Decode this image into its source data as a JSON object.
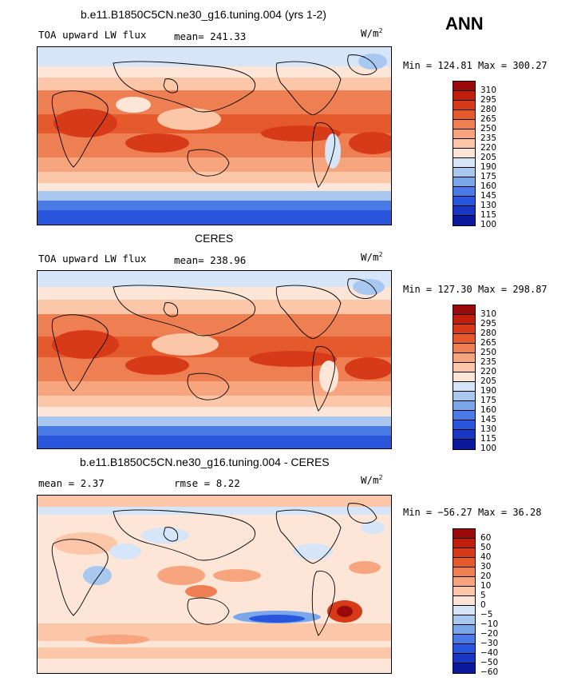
{
  "season": "ANN",
  "panels": [
    {
      "id": "model",
      "title": "b.e11.B1850C5CN.ne30_g16.tuning.004 (yrs 1-2)",
      "left_label": "TOA upward LW flux",
      "stat_label": "mean=",
      "stat_value": "241.33",
      "units_base": "W/m",
      "units_exp": "2",
      "min_label": "Min =",
      "min_value": "124.81",
      "max_label": "Max =",
      "max_value": "300.27",
      "levels": [
        "310",
        "295",
        "280",
        "265",
        "250",
        "235",
        "220",
        "205",
        "190",
        "175",
        "160",
        "145",
        "130",
        "115",
        "100"
      ],
      "colors": [
        "#9b0a0a",
        "#c01e0a",
        "#d73a18",
        "#e55a2c",
        "#ee7f52",
        "#f6a57e",
        "#fbc7a8",
        "#fde6d8",
        "#d6e6f8",
        "#a9c8f0",
        "#7aa6ea",
        "#4a7ae6",
        "#2a56dd",
        "#1736c2",
        "#0a1a9a"
      ]
    },
    {
      "id": "obs",
      "title": "CERES",
      "left_label": "TOA upward LW flux",
      "stat_label": "mean=",
      "stat_value": "238.96",
      "units_base": "W/m",
      "units_exp": "2",
      "min_label": "Min =",
      "min_value": "127.30",
      "max_label": "Max =",
      "max_value": "298.87",
      "levels": [
        "310",
        "295",
        "280",
        "265",
        "250",
        "235",
        "220",
        "205",
        "190",
        "175",
        "160",
        "145",
        "130",
        "115",
        "100"
      ],
      "colors": [
        "#9b0a0a",
        "#c01e0a",
        "#d73a18",
        "#e55a2c",
        "#ee7f52",
        "#f6a57e",
        "#fbc7a8",
        "#fde6d8",
        "#d6e6f8",
        "#a9c8f0",
        "#7aa6ea",
        "#4a7ae6",
        "#2a56dd",
        "#1736c2",
        "#0a1a9a"
      ]
    },
    {
      "id": "diff",
      "title": "b.e11.B1850C5CN.ne30_g16.tuning.004 - CERES",
      "left_label": "mean =",
      "left_value": "2.37",
      "stat_label": "rmse =",
      "stat_value": "8.22",
      "units_base": "W/m",
      "units_exp": "2",
      "min_label": "Min =",
      "min_value": "−56.27",
      "max_label": "Max =",
      "max_value": "36.28",
      "levels": [
        "60",
        "50",
        "40",
        "30",
        "20",
        "10",
        "5",
        "0",
        "−5",
        "−10",
        "−20",
        "−30",
        "−40",
        "−50",
        "−60"
      ],
      "colors": [
        "#9b0a0a",
        "#c01e0a",
        "#d73a18",
        "#e55a2c",
        "#ee7f52",
        "#f6a57e",
        "#fbc7a8",
        "#fde6d8",
        "#d6e6f8",
        "#a9c8f0",
        "#7aa6ea",
        "#4a7ae6",
        "#2a56dd",
        "#1736c2",
        "#0a1a9a"
      ]
    }
  ],
  "chart_data": [
    {
      "type": "heatmap",
      "title": "b.e11.B1850C5CN.ne30_g16.tuning.004 (yrs 1-2)",
      "variable": "TOA upward LW flux",
      "units": "W/m2",
      "mean": 241.33,
      "min": 124.81,
      "max": 300.27,
      "colorbar_levels": [
        310,
        295,
        280,
        265,
        250,
        235,
        220,
        205,
        190,
        175,
        160,
        145,
        130,
        115,
        100
      ]
    },
    {
      "type": "heatmap",
      "title": "CERES",
      "variable": "TOA upward LW flux",
      "units": "W/m2",
      "mean": 238.96,
      "min": 127.3,
      "max": 298.87,
      "colorbar_levels": [
        310,
        295,
        280,
        265,
        250,
        235,
        220,
        205,
        190,
        175,
        160,
        145,
        130,
        115,
        100
      ]
    },
    {
      "type": "heatmap",
      "title": "b.e11.B1850C5CN.ne30_g16.tuning.004 - CERES",
      "units": "W/m2",
      "mean": 2.37,
      "rmse": 8.22,
      "min": -56.27,
      "max": 36.28,
      "colorbar_levels": [
        60,
        50,
        40,
        30,
        20,
        10,
        5,
        0,
        -5,
        -10,
        -20,
        -30,
        -40,
        -50,
        -60
      ]
    }
  ]
}
